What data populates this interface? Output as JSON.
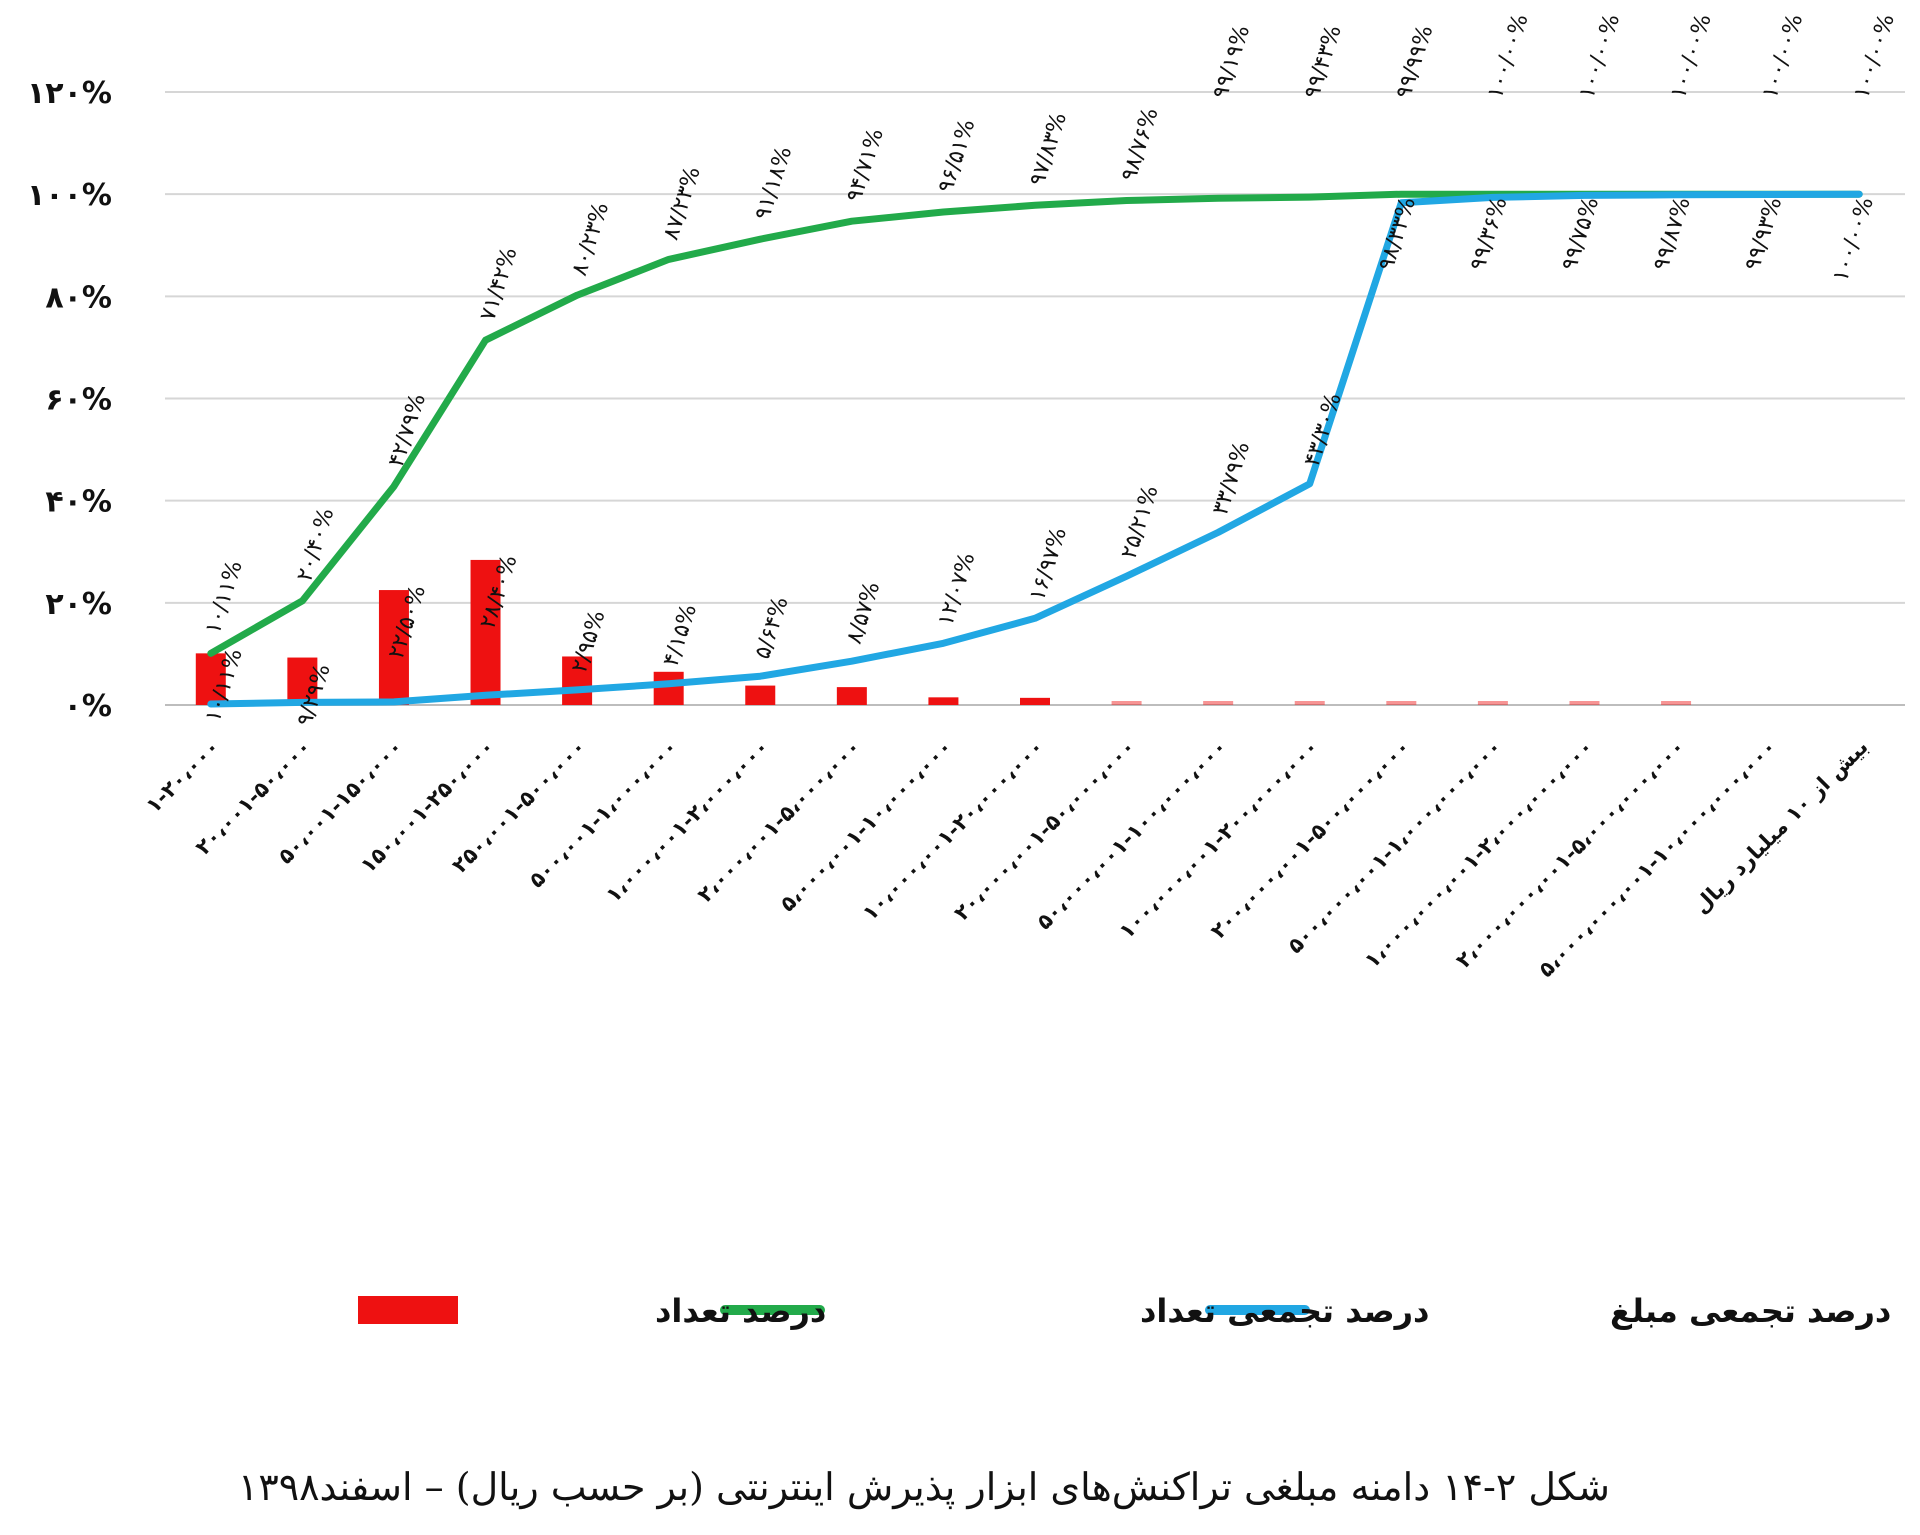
{
  "chart_data": {
    "type": "bar",
    "ylim": [
      0,
      120
    ],
    "y_ticks": [
      "۰%",
      "۲۰%",
      "۴۰%",
      "۶۰%",
      "۸۰%",
      "۱۰۰%",
      "۱۲۰%"
    ],
    "categories": [
      "۱-۲۰،۰۰۰",
      "۲۰،۰۰۱-۵۰،۰۰۰",
      "۵۰،۰۰۱-۱۵۰،۰۰۰",
      "۱۵۰،۰۰۱-۲۵۰،۰۰۰",
      "۲۵۰،۰۰۱-۵۰۰،۰۰۰",
      "۵۰۰،۰۰۱-۱،۰۰۰،۰۰۰",
      "۱،۰۰۰،۰۰۱-۲،۰۰۰،۰۰۰",
      "۲،۰۰۰،۰۰۱-۵،۰۰۰،۰۰۰",
      "۵،۰۰۰،۰۰۱-۱۰،۰۰۰،۰۰۰",
      "۱۰،۰۰۰،۰۰۱-۲۰،۰۰۰،۰۰۰",
      "۲۰،۰۰۰،۰۰۱-۵۰،۰۰۰،۰۰۰",
      "۵۰،۰۰۰،۰۰۱-۱۰۰،۰۰۰،۰۰۰",
      "۱۰۰،۰۰۰،۰۰۱-۲۰۰،۰۰۰،۰۰۰",
      "۲۰۰،۰۰۰،۰۰۱-۵۰۰،۰۰۰،۰۰۰",
      "۵۰۰،۰۰۰،۰۰۱-۱،۰۰۰،۰۰۰،۰۰۰",
      "۱،۰۰۰،۰۰۰،۰۰۱-۲،۰۰۰،۰۰۰،۰۰۰",
      "۲،۰۰۰،۰۰۰،۰۰۱-۵،۰۰۰،۰۰۰،۰۰۰",
      "۵،۰۰۰،۰۰۰،۰۰۱-۱۰،۰۰۰،۰۰۰،۰۰۰",
      "بیش از ۱۰ میلیارد ریال"
    ],
    "series": [
      {
        "name": "درصد تعداد",
        "type": "bar",
        "color": "#ee1111",
        "values": [
          10.11,
          9.29,
          22.5,
          28.4,
          9.5,
          6.5,
          3.8,
          3.5,
          1.5,
          1.4,
          0.6,
          0.6,
          0.6,
          0.6,
          0.6,
          0.6,
          0.6,
          0,
          0
        ],
        "labels": [
          "۱۰/۱۱%",
          "۹/۲۹%",
          "۲۲/۵۰%",
          "۲۸/۴۰%",
          "",
          "",
          "",
          "",
          "",
          "",
          "",
          "",
          "",
          "",
          "",
          "",
          "",
          "",
          ""
        ]
      },
      {
        "name": "درصد تجمعی تعداد",
        "type": "line",
        "color": "#22aa4a",
        "values": [
          10.11,
          20.4,
          42.79,
          71.42,
          80.23,
          87.23,
          91.18,
          94.71,
          96.51,
          97.83,
          98.76,
          99.19,
          99.43,
          99.99,
          100.0,
          100.0,
          100.0,
          100.0,
          100.0
        ],
        "labels": [
          "۱۰/۱۱%",
          "۲۰/۴۰%",
          "۴۲/۷۹%",
          "۷۱/۴۲%",
          "۸۰/۲۳%",
          "۸۷/۲۳%",
          "۹۱/۱۸%",
          "۹۴/۷۱%",
          "۹۶/۵۱%",
          "۹۷/۸۳%",
          "۹۸/۷۶%",
          "۹۹/۱۹%",
          "۹۹/۴۳%",
          "۹۹/۹۹%",
          "۱۰۰/۰۰%",
          "۱۰۰/۰۰%",
          "۱۰۰/۰۰%",
          "۱۰۰/۰۰%",
          "۱۰۰/۰۰%"
        ]
      },
      {
        "name": "درصد تجمعی مبلغ",
        "type": "line",
        "color": "#21a7e3",
        "values": [
          0.2,
          0.5,
          0.6,
          1.9,
          2.95,
          4.15,
          5.64,
          8.57,
          12.07,
          16.97,
          25.21,
          33.79,
          43.3,
          98.33,
          99.36,
          99.75,
          99.87,
          99.93,
          100.0
        ],
        "labels": [
          "",
          "",
          "",
          "",
          "۲/۹۵%",
          "۴/۱۵%",
          "۵/۶۴%",
          "۸/۵۷%",
          "۱۲/۰۷%",
          "۱۶/۹۷%",
          "۲۵/۲۱%",
          "۳۳/۷۹%",
          "۴۳/۳۰%",
          "۹۸/۳۳%",
          "۹۹/۳۶%",
          "۹۹/۷۵%",
          "۹۹/۸۷%",
          "۹۹/۹۳%",
          "۱۰۰/۰۰%"
        ]
      }
    ],
    "legend_placement": "bottom",
    "grid": true
  },
  "caption": "شکل ۲-۱۴ دامنه مبلغی تراکنش‌های ابزار پذیرش اینترنتی (بر حسب ریال) – اسفند۱۳۹۸"
}
